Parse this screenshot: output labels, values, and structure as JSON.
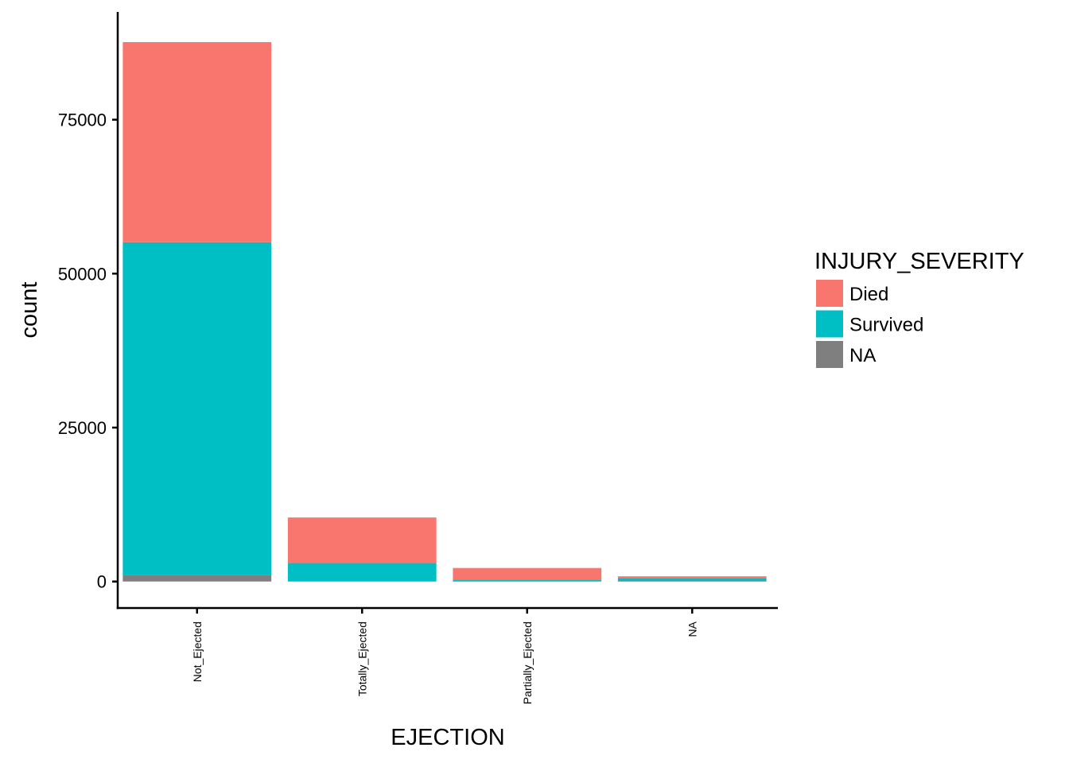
{
  "chart_data": {
    "type": "bar",
    "stacked": true,
    "xlabel": "EJECTION",
    "ylabel": "count",
    "categories": [
      "Not_Ejected",
      "Totally_Ejected",
      "Partially_Ejected",
      "NA"
    ],
    "series": [
      {
        "name": "NA",
        "color": "#7f7f7f",
        "values": [
          1100,
          0,
          0,
          150
        ]
      },
      {
        "name": "Survived",
        "color": "#00bfc4",
        "values": [
          54000,
          3000,
          300,
          400
        ]
      },
      {
        "name": "Died",
        "color": "#f8766d",
        "values": [
          32500,
          7400,
          1900,
          300
        ]
      }
    ],
    "ylim": [
      -4300,
      92500
    ],
    "yticks": [
      0,
      25000,
      50000,
      75000
    ],
    "ytick_labels": [
      "0",
      "25000",
      "50000",
      "75000"
    ],
    "grid": false,
    "legend": {
      "title": "INJURY_SEVERITY",
      "position": "right",
      "entries": [
        {
          "label": "Died",
          "color": "#f8766d"
        },
        {
          "label": "Survived",
          "color": "#00bfc4"
        },
        {
          "label": "NA",
          "color": "#7f7f7f"
        }
      ]
    }
  }
}
